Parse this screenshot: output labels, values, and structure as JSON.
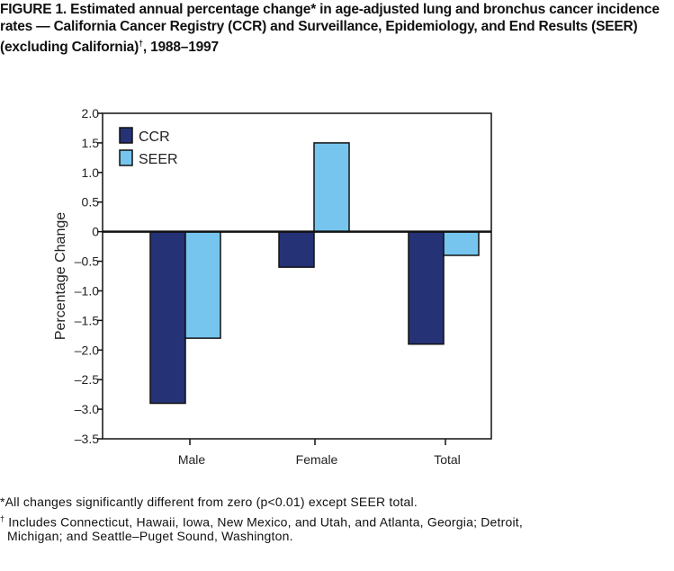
{
  "title": {
    "label": "FIGURE 1.",
    "text": "Estimated annual percentage change* in age-adjusted lung and bronchus cancer incidence rates — California Cancer Registry (CCR) and Surveillance, Epidemiology, and End Results (SEER) (excluding California)",
    "dagger": "†",
    "years": ", 1988–1997"
  },
  "chart_data": {
    "type": "bar",
    "title": "",
    "xlabel": "",
    "ylabel": "Percentage Change",
    "ylim": [
      -3.5,
      2.0
    ],
    "yticks": [
      "2.0",
      "1.5",
      "1.0",
      "0.5",
      "0",
      "-0.5",
      "-1.0",
      "-1.5",
      "-2.0",
      "-2.5",
      "-3.0",
      "-3.5"
    ],
    "categories": [
      "Male",
      "Female",
      "Total"
    ],
    "series": [
      {
        "name": "CCR",
        "values": [
          -2.9,
          -0.6,
          -1.9
        ],
        "color": "#253276"
      },
      {
        "name": "SEER",
        "values": [
          -1.8,
          1.5,
          -0.4
        ],
        "color": "#76C5EF"
      }
    ],
    "grid": false,
    "legend": "top-left"
  },
  "footnotes": {
    "star": "*All changes significantly different from zero (p<0.01) except SEER total.",
    "dagger_mark": "†",
    "dagger_line1": " Includes Connecticut, Hawaii, Iowa, New Mexico, and Utah, and Atlanta, Georgia; Detroit,",
    "dagger_line2": "Michigan; and Seattle–Puget Sound, Washington."
  }
}
